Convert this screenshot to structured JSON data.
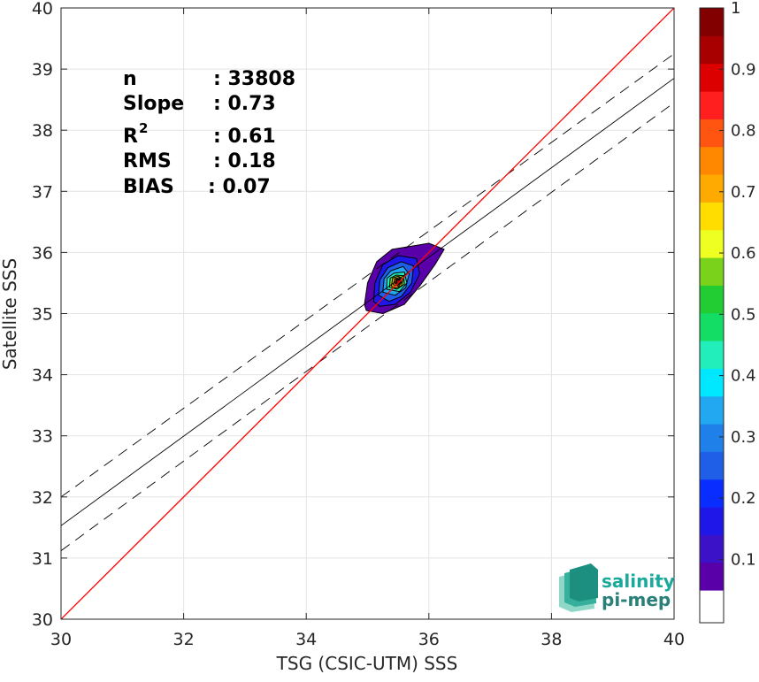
{
  "chart_data": {
    "type": "scatter",
    "subtype": "density-contour",
    "xlabel": "TSG (CSIC-UTM) SSS",
    "ylabel": "Satellite SSS",
    "xlim": [
      30,
      40
    ],
    "ylim": [
      30,
      40
    ],
    "xticks": [
      30,
      32,
      34,
      36,
      38,
      40
    ],
    "yticks": [
      30,
      31,
      32,
      33,
      34,
      35,
      36,
      37,
      38,
      39,
      40
    ],
    "grid": true,
    "stats": {
      "n_label": "n",
      "n_value": ": 33808",
      "slope_label": "Slope",
      "slope_value": ": 0.73",
      "r2_label": "R",
      "r2_sup": "2",
      "r2_value": ": 0.61",
      "rms_label": "RMS",
      "rms_value": ": 0.18",
      "bias_label": "BIAS",
      "bias_value": ": 0.07"
    },
    "lines": {
      "identity": {
        "x": [
          30,
          40
        ],
        "y": [
          30,
          40
        ],
        "color": "#ff0000"
      },
      "fit": {
        "x": [
          30,
          40
        ],
        "y": [
          31.53,
          38.85
        ],
        "color": "#000000"
      },
      "fit_upper": {
        "x": [
          30,
          40
        ],
        "y": [
          32.0,
          39.25
        ],
        "style": "dashed"
      },
      "fit_lower": {
        "x": [
          30,
          40
        ],
        "y": [
          31.12,
          38.45
        ],
        "style": "dashed"
      }
    },
    "density": {
      "center": [
        35.5,
        35.52
      ],
      "levels": [
        {
          "level": 0.05,
          "points": [
            [
              34.95,
              35.15
            ],
            [
              35.0,
              35.5
            ],
            [
              35.15,
              35.85
            ],
            [
              35.4,
              36.05
            ],
            [
              35.7,
              36.1
            ],
            [
              36.0,
              36.15
            ],
            [
              36.25,
              36.05
            ],
            [
              36.1,
              35.8
            ],
            [
              35.85,
              35.45
            ],
            [
              35.6,
              35.15
            ],
            [
              35.25,
              35.0
            ],
            [
              34.98,
              35.05
            ]
          ]
        },
        {
          "level": 0.15,
          "points": [
            [
              35.1,
              35.2
            ],
            [
              35.12,
              35.5
            ],
            [
              35.25,
              35.8
            ],
            [
              35.5,
              35.95
            ],
            [
              35.8,
              35.9
            ],
            [
              35.85,
              35.65
            ],
            [
              35.7,
              35.35
            ],
            [
              35.45,
              35.15
            ],
            [
              35.2,
              35.12
            ]
          ]
        },
        {
          "level": 0.25,
          "points": [
            [
              35.18,
              35.3
            ],
            [
              35.2,
              35.55
            ],
            [
              35.33,
              35.75
            ],
            [
              35.55,
              35.85
            ],
            [
              35.75,
              35.78
            ],
            [
              35.72,
              35.5
            ],
            [
              35.55,
              35.28
            ],
            [
              35.35,
              35.2
            ]
          ]
        },
        {
          "level": 0.35,
          "points": [
            [
              35.25,
              35.35
            ],
            [
              35.27,
              35.57
            ],
            [
              35.38,
              35.7
            ],
            [
              35.58,
              35.77
            ],
            [
              35.68,
              35.65
            ],
            [
              35.62,
              35.42
            ],
            [
              35.45,
              35.3
            ]
          ]
        },
        {
          "level": 0.45,
          "points": [
            [
              35.31,
              35.4
            ],
            [
              35.32,
              35.58
            ],
            [
              35.43,
              35.66
            ],
            [
              35.6,
              35.68
            ],
            [
              35.64,
              35.5
            ],
            [
              35.52,
              35.36
            ]
          ]
        },
        {
          "level": 0.55,
          "points": [
            [
              35.36,
              35.43
            ],
            [
              35.37,
              35.58
            ],
            [
              35.47,
              35.63
            ],
            [
              35.59,
              35.62
            ],
            [
              35.6,
              35.48
            ],
            [
              35.48,
              35.4
            ]
          ]
        },
        {
          "level": 0.65,
          "points": [
            [
              35.39,
              35.45
            ],
            [
              35.41,
              35.58
            ],
            [
              35.5,
              35.61
            ],
            [
              35.58,
              35.56
            ],
            [
              35.55,
              35.45
            ],
            [
              35.46,
              35.42
            ]
          ]
        },
        {
          "level": 0.75,
          "points": [
            [
              35.42,
              35.47
            ],
            [
              35.44,
              35.57
            ],
            [
              35.52,
              35.59
            ],
            [
              35.56,
              35.52
            ],
            [
              35.51,
              35.45
            ]
          ]
        },
        {
          "level": 0.85,
          "points": [
            [
              35.45,
              35.49
            ],
            [
              35.46,
              35.56
            ],
            [
              35.52,
              35.57
            ],
            [
              35.54,
              35.51
            ],
            [
              35.5,
              35.47
            ]
          ]
        },
        {
          "level": 0.95,
          "points": [
            [
              35.47,
              35.5
            ],
            [
              35.48,
              35.55
            ],
            [
              35.52,
              35.55
            ],
            [
              35.53,
              35.51
            ],
            [
              35.5,
              35.49
            ]
          ]
        }
      ]
    },
    "colorbar": {
      "ticks": [
        0.1,
        0.2,
        0.3,
        0.4,
        0.5,
        0.6,
        0.7,
        0.8,
        0.9,
        1
      ],
      "range": [
        0.05,
        1
      ],
      "colors": [
        "#5a00a8",
        "#3c12c8",
        "#1f16e8",
        "#0a2dff",
        "#1f5fe8",
        "#1f80ea",
        "#21a8f0",
        "#00e8ff",
        "#22eebb",
        "#14dd66",
        "#22cc33",
        "#7ad31a",
        "#eeff22",
        "#ffdd00",
        "#ffaa00",
        "#ff8800",
        "#ff5511",
        "#ff1f1f",
        "#dd0000",
        "#a80000",
        "#820000"
      ]
    }
  },
  "logo": {
    "line1": "salinity",
    "line2": "pi-mep"
  }
}
